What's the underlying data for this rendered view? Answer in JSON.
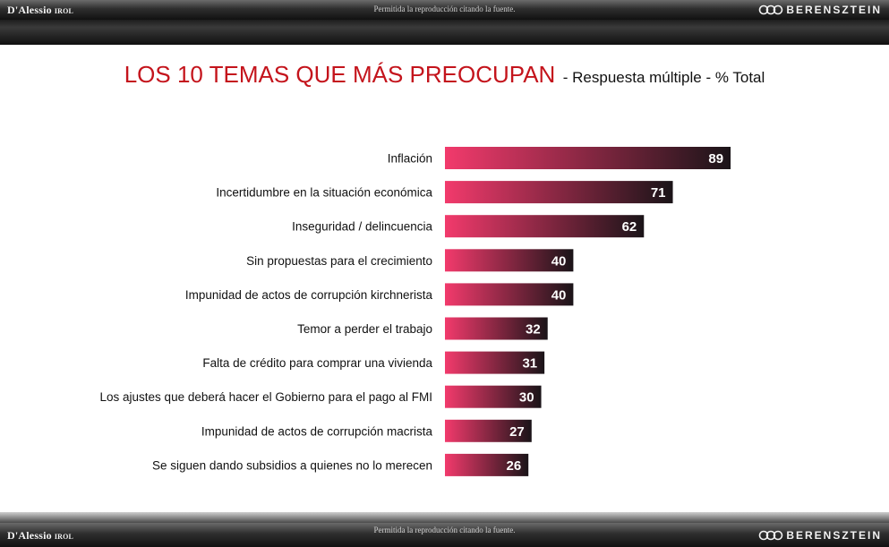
{
  "header": {
    "logo_left": "D'Alessio",
    "logo_left_sub": "IROL",
    "note": "Permitida la reproducción citando la fuente.",
    "logo_right": "BERENSZTEIN"
  },
  "footer": {
    "logo_left": "D'Alessio",
    "logo_left_sub": "IROL",
    "note": "Permitida la reproducción citando la fuente.",
    "logo_right": "BERENSZTEIN"
  },
  "colors": {
    "title": "#c4141c",
    "bar_start": "#f23a6c",
    "bar_end": "#1a1418"
  },
  "chart_data": {
    "type": "bar",
    "orientation": "horizontal",
    "title": "LOS 10 TEMAS QUE MÁS PREOCUPAN",
    "subtitle": "- Respuesta múltiple - % Total",
    "categories": [
      "Inflación",
      "Incertidumbre en la situación económica",
      "Inseguridad / delincuencia",
      "Sin propuestas para el crecimiento",
      "Impunidad de actos de corrupción kirchnerista",
      "Temor a perder el trabajo",
      "Falta de crédito para comprar una vivienda",
      "Los ajustes que deberá hacer el Gobierno para el pago al FMI",
      "Impunidad de actos de corrupción macrista",
      "Se siguen dando subsidios a quienes no lo merecen"
    ],
    "values": [
      89,
      71,
      62,
      40,
      40,
      32,
      31,
      30,
      27,
      26
    ],
    "xlim": [
      0,
      100
    ],
    "grid": false,
    "legend": "none"
  }
}
